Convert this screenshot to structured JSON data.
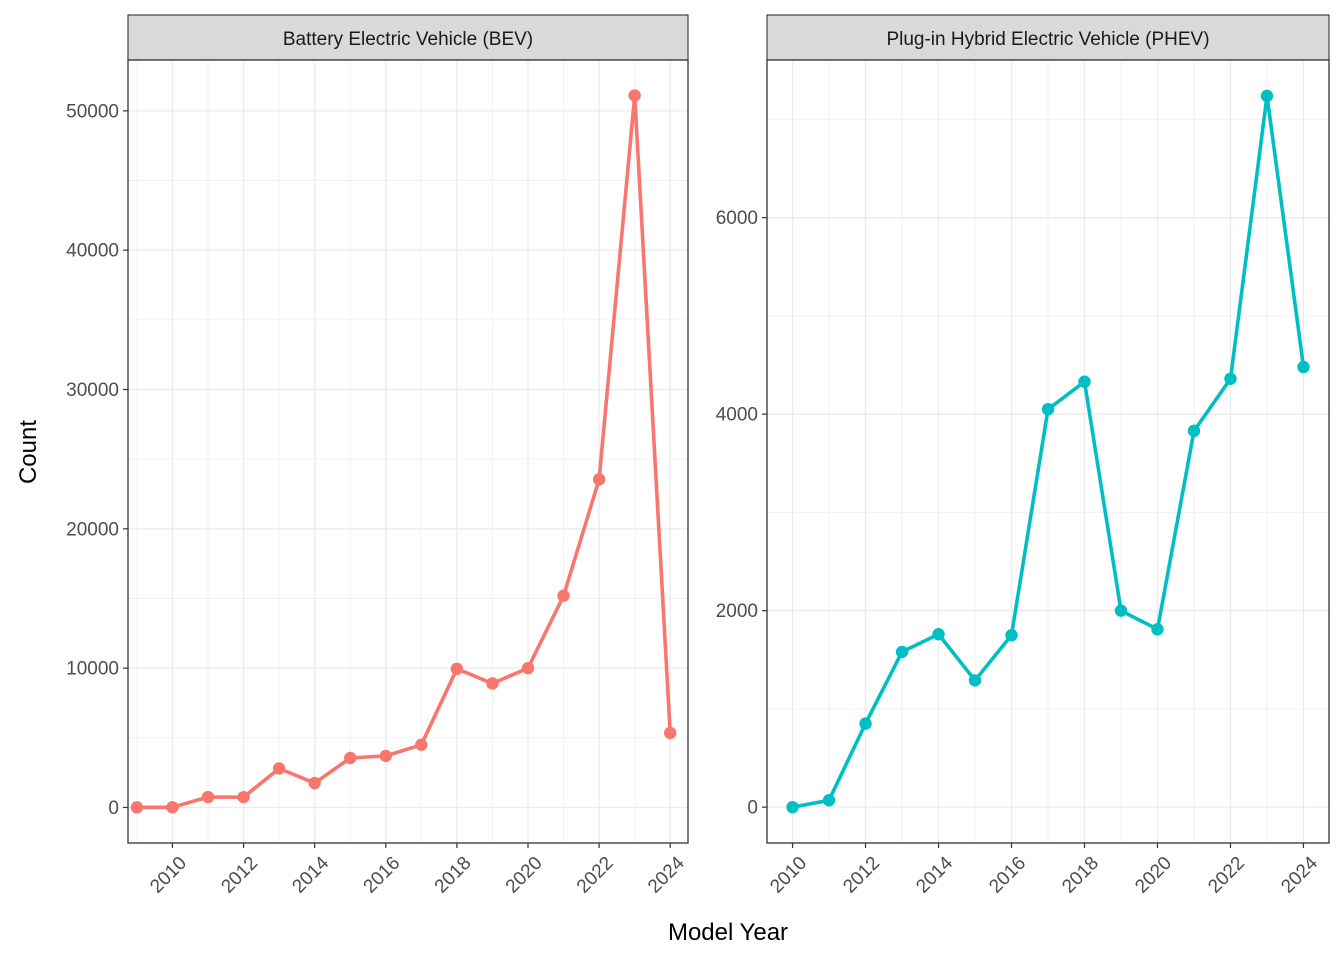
{
  "figure": {
    "xlabel": "Model Year",
    "ylabel": "Count"
  },
  "chart_data": [
    {
      "type": "line",
      "facet_title": "Battery Electric Vehicle (BEV)",
      "series_color": "#F8766D",
      "x": [
        2009,
        2010,
        2011,
        2012,
        2013,
        2014,
        2015,
        2016,
        2017,
        2018,
        2019,
        2020,
        2021,
        2022,
        2023,
        2024
      ],
      "y": [
        10,
        15,
        750,
        740,
        2800,
        1750,
        3550,
        3700,
        4500,
        9950,
        8900,
        10000,
        15200,
        23550,
        51100,
        5350
      ],
      "xticks": [
        2010,
        2012,
        2014,
        2016,
        2018,
        2020,
        2022,
        2024
      ],
      "yticks": [
        0,
        10000,
        20000,
        30000,
        40000,
        50000
      ],
      "xlim": [
        2008.75,
        2024.5
      ],
      "ylim": [
        -2550,
        53650
      ],
      "grid": true
    },
    {
      "type": "line",
      "facet_title": "Plug-in Hybrid Electric Vehicle (PHEV)",
      "series_color": "#00BFC4",
      "x": [
        2010,
        2011,
        2012,
        2013,
        2014,
        2015,
        2016,
        2017,
        2018,
        2019,
        2020,
        2021,
        2022,
        2023,
        2024
      ],
      "y": [
        0,
        70,
        850,
        1580,
        1760,
        1290,
        1750,
        4050,
        4330,
        2000,
        1810,
        3830,
        4360,
        7240,
        4480
      ],
      "xticks": [
        2010,
        2012,
        2014,
        2016,
        2018,
        2020,
        2022,
        2024
      ],
      "yticks": [
        0,
        2000,
        4000,
        6000
      ],
      "xlim": [
        2009.3,
        2024.7
      ],
      "ylim": [
        -365,
        7605
      ],
      "grid": true
    }
  ]
}
